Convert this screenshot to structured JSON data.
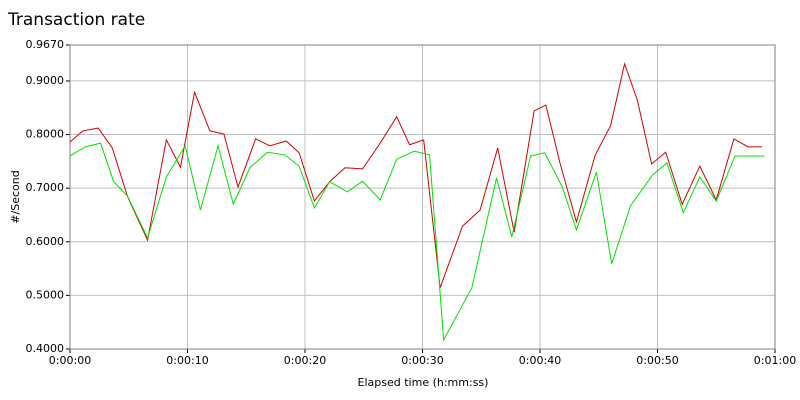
{
  "chart_data": {
    "type": "line",
    "title": "Transaction rate",
    "x_label": "Elapsed time (h:mm:ss)",
    "y_label": "#/Second",
    "xlim": [
      0,
      60
    ],
    "xticks": [
      {
        "value": 0,
        "label": "0:00:00"
      },
      {
        "value": 10,
        "label": "0:00:10"
      },
      {
        "value": 20,
        "label": "0:00:20"
      },
      {
        "value": 30,
        "label": "0:00:30"
      },
      {
        "value": 40,
        "label": "0:00:40"
      },
      {
        "value": 50,
        "label": "0:00:50"
      },
      {
        "value": 60,
        "label": "0:01:00"
      }
    ],
    "ylim": [
      0.4,
      0.967
    ],
    "yticks": [
      {
        "value": 0.4,
        "label": "0.4000"
      },
      {
        "value": 0.5,
        "label": "0.5000"
      },
      {
        "value": 0.6,
        "label": "0.6000"
      },
      {
        "value": 0.7,
        "label": "0.7000"
      },
      {
        "value": 0.8,
        "label": "0.8000"
      },
      {
        "value": 0.9,
        "label": "0.9000"
      },
      {
        "value": 0.967,
        "label": "0.9670"
      }
    ],
    "grid": true,
    "series": [
      {
        "color": "#d40000",
        "x": [
          0,
          1.1,
          2.4,
          3.6,
          4.9,
          6.6,
          8.2,
          9.4,
          10.6,
          11.9,
          13.1,
          14.3,
          15.8,
          17.0,
          18.4,
          19.5,
          20.8,
          22.1,
          23.4,
          24.9,
          26.4,
          27.8,
          28.9,
          30.1,
          31.5,
          33.4,
          34.9,
          36.4,
          37.8,
          39.5,
          40.5,
          41.7,
          43.1,
          44.7,
          46.0,
          47.2,
          48.3,
          49.5,
          50.7,
          52.1,
          53.6,
          55.0,
          56.5,
          57.7,
          58.9
        ],
        "values": [
          0.786,
          0.807,
          0.812,
          0.775,
          0.684,
          0.603,
          0.79,
          0.739,
          0.879,
          0.807,
          0.801,
          0.702,
          0.792,
          0.779,
          0.788,
          0.766,
          0.676,
          0.712,
          0.738,
          0.736,
          0.784,
          0.833,
          0.781,
          0.79,
          0.514,
          0.629,
          0.659,
          0.775,
          0.618,
          0.844,
          0.855,
          0.747,
          0.637,
          0.762,
          0.816,
          0.932,
          0.863,
          0.745,
          0.767,
          0.67,
          0.741,
          0.678,
          0.792,
          0.777,
          0.777
        ]
      },
      {
        "color": "#00e000",
        "x": [
          0,
          1.3,
          2.6,
          3.7,
          4.9,
          6.6,
          8.2,
          9.8,
          11.1,
          12.6,
          13.9,
          15.3,
          16.8,
          18.3,
          19.5,
          20.8,
          22.1,
          23.6,
          24.9,
          26.4,
          27.8,
          29.3,
          30.6,
          31.8,
          34.2,
          36.3,
          37.6,
          39.2,
          40.4,
          41.9,
          43.1,
          44.8,
          46.1,
          47.7,
          49.6,
          50.8,
          52.2,
          53.6,
          55.0,
          56.6,
          57.9,
          59.1
        ],
        "values": [
          0.76,
          0.777,
          0.784,
          0.713,
          0.685,
          0.607,
          0.721,
          0.779,
          0.659,
          0.779,
          0.67,
          0.738,
          0.767,
          0.762,
          0.741,
          0.663,
          0.712,
          0.693,
          0.713,
          0.678,
          0.754,
          0.769,
          0.762,
          0.417,
          0.514,
          0.719,
          0.609,
          0.76,
          0.766,
          0.702,
          0.622,
          0.73,
          0.559,
          0.667,
          0.725,
          0.747,
          0.654,
          0.721,
          0.676,
          0.76,
          0.76,
          0.76
        ]
      }
    ]
  }
}
